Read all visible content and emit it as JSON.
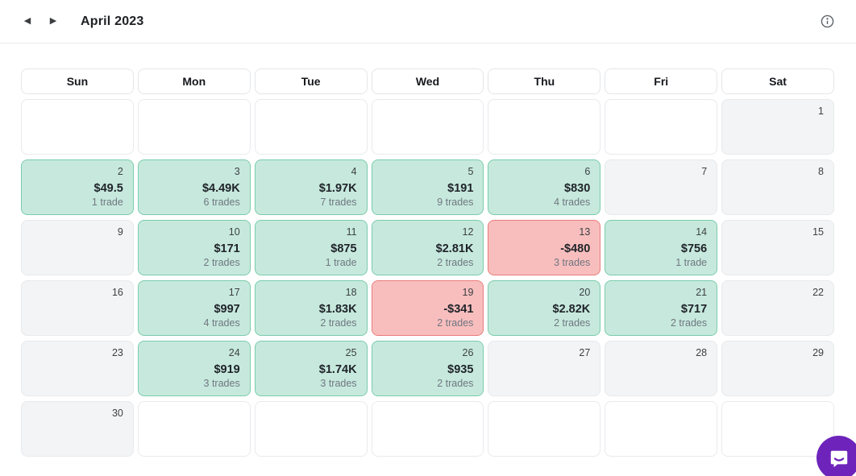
{
  "top_bar": {
    "prev_label": "◀",
    "next_label": "▶",
    "title": "April 2023"
  },
  "calendar": {
    "day_headers": [
      "Sun",
      "Mon",
      "Tue",
      "Wed",
      "Thu",
      "Fri",
      "Sat"
    ],
    "weeks": [
      [
        {
          "state": "outside"
        },
        {
          "state": "outside"
        },
        {
          "state": "outside"
        },
        {
          "state": "outside"
        },
        {
          "state": "outside"
        },
        {
          "state": "outside"
        },
        {
          "day": "1",
          "state": "empty"
        }
      ],
      [
        {
          "day": "2",
          "value": "$49.5",
          "trades": "1 trade",
          "state": "profit"
        },
        {
          "day": "3",
          "value": "$4.49K",
          "trades": "6 trades",
          "state": "profit"
        },
        {
          "day": "4",
          "value": "$1.97K",
          "trades": "7 trades",
          "state": "profit"
        },
        {
          "day": "5",
          "value": "$191",
          "trades": "9 trades",
          "state": "profit"
        },
        {
          "day": "6",
          "value": "$830",
          "trades": "4 trades",
          "state": "profit"
        },
        {
          "day": "7",
          "state": "empty"
        },
        {
          "day": "8",
          "state": "empty"
        }
      ],
      [
        {
          "day": "9",
          "state": "empty"
        },
        {
          "day": "10",
          "value": "$171",
          "trades": "2 trades",
          "state": "profit"
        },
        {
          "day": "11",
          "value": "$875",
          "trades": "1 trade",
          "state": "profit"
        },
        {
          "day": "12",
          "value": "$2.81K",
          "trades": "2 trades",
          "state": "profit"
        },
        {
          "day": "13",
          "value": "-$480",
          "trades": "3 trades",
          "state": "loss"
        },
        {
          "day": "14",
          "value": "$756",
          "trades": "1 trade",
          "state": "profit"
        },
        {
          "day": "15",
          "state": "empty"
        }
      ],
      [
        {
          "day": "16",
          "state": "empty"
        },
        {
          "day": "17",
          "value": "$997",
          "trades": "4 trades",
          "state": "profit"
        },
        {
          "day": "18",
          "value": "$1.83K",
          "trades": "2 trades",
          "state": "profit"
        },
        {
          "day": "19",
          "value": "-$341",
          "trades": "2 trades",
          "state": "loss"
        },
        {
          "day": "20",
          "value": "$2.82K",
          "trades": "2 trades",
          "state": "profit"
        },
        {
          "day": "21",
          "value": "$717",
          "trades": "2 trades",
          "state": "profit"
        },
        {
          "day": "22",
          "state": "empty"
        }
      ],
      [
        {
          "day": "23",
          "state": "empty"
        },
        {
          "day": "24",
          "value": "$919",
          "trades": "3 trades",
          "state": "profit"
        },
        {
          "day": "25",
          "value": "$1.74K",
          "trades": "3 trades",
          "state": "profit"
        },
        {
          "day": "26",
          "value": "$935",
          "trades": "2 trades",
          "state": "profit"
        },
        {
          "day": "27",
          "state": "empty"
        },
        {
          "day": "28",
          "state": "empty"
        },
        {
          "day": "29",
          "state": "empty"
        }
      ],
      [
        {
          "day": "30",
          "state": "empty"
        },
        {
          "state": "outside"
        },
        {
          "state": "outside"
        },
        {
          "state": "outside"
        },
        {
          "state": "outside"
        },
        {
          "state": "outside"
        },
        {
          "state": "outside"
        }
      ]
    ]
  },
  "colors": {
    "profit_bg": "#c7e9dd",
    "profit_border": "#79ccab",
    "loss_bg": "#f8bebe",
    "loss_border": "#e97c7c",
    "empty_bg": "#f2f4f5",
    "empty_border": "#e7e9ec",
    "outside_border": "#e9eaee",
    "chat_bg": "#6e24bb"
  }
}
